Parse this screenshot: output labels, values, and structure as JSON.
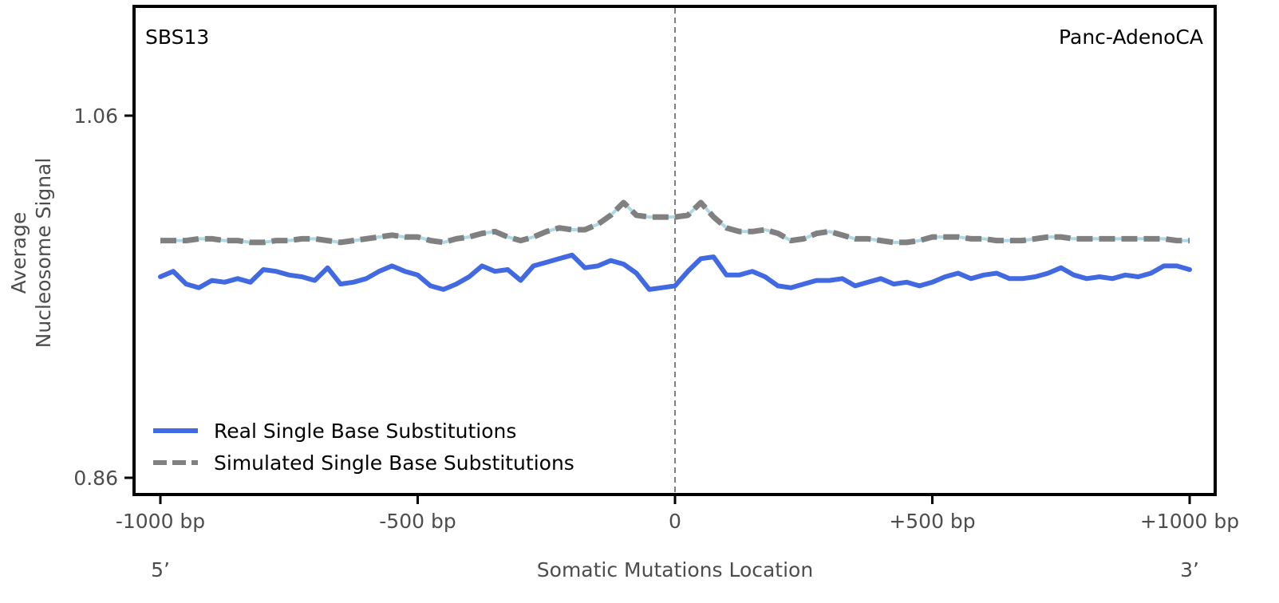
{
  "chart_data": {
    "type": "line",
    "signature_label": "SBS13",
    "cancer_type_label": "Panc-AdenoCA",
    "xlabel": "Somatic Mutations Location",
    "ylabel_line1": "Average",
    "ylabel_line2": "Nucleosome Signal",
    "five_prime_label": "5’",
    "three_prime_label": "3’",
    "xlim": [
      -1050,
      1050
    ],
    "ylim": [
      0.85,
      1.12
    ],
    "x_ticks": [
      {
        "value": -1000,
        "label": "-1000 bp"
      },
      {
        "value": -500,
        "label": "-500 bp"
      },
      {
        "value": 0,
        "label": "0"
      },
      {
        "value": 500,
        "label": "+500 bp"
      },
      {
        "value": 1000,
        "label": "+1000 bp"
      }
    ],
    "y_ticks": [
      {
        "value": 1.06,
        "label": "1.06"
      },
      {
        "value": 0.86,
        "label": "0.86"
      }
    ],
    "center_line_x": 0,
    "legend_position": "lower-left",
    "series": [
      {
        "name": "Real Single Base Substitutions",
        "style": "solid",
        "color": "#4169e1",
        "x": [
          -1000,
          -975,
          -950,
          -925,
          -900,
          -875,
          -850,
          -825,
          -800,
          -775,
          -750,
          -725,
          -700,
          -675,
          -650,
          -625,
          -600,
          -575,
          -550,
          -525,
          -500,
          -475,
          -450,
          -425,
          -400,
          -375,
          -350,
          -325,
          -300,
          -275,
          -250,
          -225,
          -200,
          -175,
          -150,
          -125,
          -100,
          -75,
          -50,
          -25,
          0,
          25,
          50,
          75,
          100,
          125,
          150,
          175,
          200,
          225,
          250,
          275,
          300,
          325,
          350,
          375,
          400,
          425,
          450,
          475,
          500,
          525,
          550,
          575,
          600,
          625,
          650,
          675,
          700,
          725,
          750,
          775,
          800,
          825,
          850,
          875,
          900,
          925,
          950,
          975,
          1000
        ],
        "y": [
          0.971,
          0.974,
          0.967,
          0.965,
          0.969,
          0.968,
          0.97,
          0.968,
          0.975,
          0.974,
          0.972,
          0.971,
          0.969,
          0.976,
          0.967,
          0.968,
          0.97,
          0.974,
          0.977,
          0.974,
          0.972,
          0.966,
          0.964,
          0.967,
          0.971,
          0.977,
          0.974,
          0.975,
          0.969,
          0.977,
          0.979,
          0.981,
          0.983,
          0.976,
          0.977,
          0.98,
          0.978,
          0.973,
          0.964,
          0.965,
          0.966,
          0.974,
          0.981,
          0.982,
          0.972,
          0.972,
          0.974,
          0.971,
          0.966,
          0.965,
          0.967,
          0.969,
          0.969,
          0.97,
          0.966,
          0.968,
          0.97,
          0.967,
          0.968,
          0.966,
          0.968,
          0.971,
          0.973,
          0.97,
          0.972,
          0.973,
          0.97,
          0.97,
          0.971,
          0.973,
          0.976,
          0.972,
          0.97,
          0.971,
          0.97,
          0.972,
          0.971,
          0.973,
          0.977,
          0.977,
          0.975
        ]
      },
      {
        "name": "Simulated Single Base Substitutions",
        "style": "dashed",
        "color": "#808080",
        "inner_color": "#add8e6",
        "x": [
          -1000,
          -975,
          -950,
          -925,
          -900,
          -875,
          -850,
          -825,
          -800,
          -775,
          -750,
          -725,
          -700,
          -675,
          -650,
          -625,
          -600,
          -575,
          -550,
          -525,
          -500,
          -475,
          -450,
          -425,
          -400,
          -375,
          -350,
          -325,
          -300,
          -275,
          -250,
          -225,
          -200,
          -175,
          -150,
          -125,
          -100,
          -75,
          -50,
          -25,
          0,
          25,
          50,
          75,
          100,
          125,
          150,
          175,
          200,
          225,
          250,
          275,
          300,
          325,
          350,
          375,
          400,
          425,
          450,
          475,
          500,
          525,
          550,
          575,
          600,
          625,
          650,
          675,
          700,
          725,
          750,
          775,
          800,
          825,
          850,
          875,
          900,
          925,
          950,
          975,
          1000
        ],
        "y": [
          0.991,
          0.991,
          0.991,
          0.992,
          0.992,
          0.991,
          0.991,
          0.99,
          0.99,
          0.991,
          0.991,
          0.992,
          0.992,
          0.991,
          0.99,
          0.991,
          0.992,
          0.993,
          0.994,
          0.993,
          0.993,
          0.991,
          0.99,
          0.992,
          0.993,
          0.995,
          0.996,
          0.993,
          0.991,
          0.993,
          0.996,
          0.998,
          0.997,
          0.997,
          1.0,
          1.005,
          1.012,
          1.005,
          1.004,
          1.004,
          1.004,
          1.005,
          1.012,
          1.004,
          0.998,
          0.996,
          0.996,
          0.997,
          0.995,
          0.991,
          0.992,
          0.995,
          0.996,
          0.994,
          0.992,
          0.992,
          0.991,
          0.99,
          0.99,
          0.991,
          0.993,
          0.993,
          0.993,
          0.992,
          0.992,
          0.991,
          0.991,
          0.991,
          0.992,
          0.993,
          0.993,
          0.992,
          0.992,
          0.992,
          0.992,
          0.992,
          0.992,
          0.992,
          0.992,
          0.991,
          0.991
        ]
      }
    ]
  }
}
